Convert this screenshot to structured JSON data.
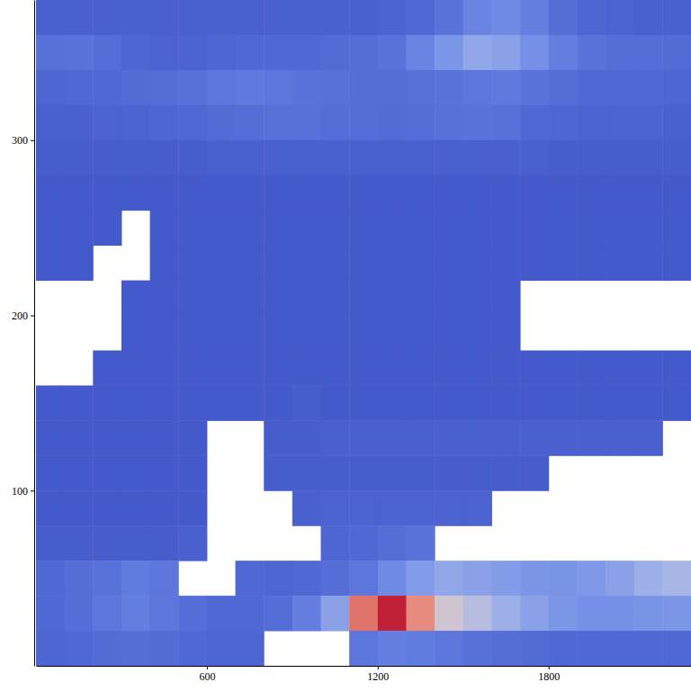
{
  "chart_data": {
    "type": "heatmap",
    "x": [
      50,
      150,
      250,
      350,
      450,
      550,
      650,
      750,
      850,
      950,
      1050,
      1150,
      1250,
      1350,
      1450,
      1550,
      1650,
      1750,
      1850,
      1950,
      2050,
      2150,
      2250
    ],
    "y": [
      370,
      350,
      330,
      310,
      290,
      270,
      250,
      230,
      210,
      190,
      170,
      150,
      130,
      110,
      90,
      70,
      50,
      30,
      10
    ],
    "xlim": [
      0,
      2300
    ],
    "ylim": [
      0,
      380
    ],
    "xticks": [
      600,
      1200,
      1800
    ],
    "yticks": [
      100,
      200,
      300
    ],
    "zlim": [
      0,
      1
    ],
    "values": [
      [
        0.07,
        0.07,
        0.07,
        0.07,
        0.07,
        0.07,
        0.07,
        0.07,
        0.07,
        0.07,
        0.07,
        0.07,
        0.08,
        0.1,
        0.14,
        0.2,
        0.22,
        0.18,
        0.12,
        0.09,
        0.08,
        0.07,
        0.07
      ],
      [
        0.13,
        0.14,
        0.12,
        0.09,
        0.08,
        0.08,
        0.09,
        0.1,
        0.1,
        0.1,
        0.11,
        0.12,
        0.14,
        0.2,
        0.26,
        0.32,
        0.3,
        0.24,
        0.18,
        0.14,
        0.12,
        0.12,
        0.11
      ],
      [
        0.09,
        0.1,
        0.1,
        0.11,
        0.12,
        0.13,
        0.15,
        0.16,
        0.15,
        0.14,
        0.13,
        0.12,
        0.12,
        0.13,
        0.14,
        0.15,
        0.16,
        0.14,
        0.12,
        0.1,
        0.1,
        0.1,
        0.09
      ],
      [
        0.07,
        0.07,
        0.08,
        0.08,
        0.09,
        0.1,
        0.11,
        0.12,
        0.13,
        0.13,
        0.12,
        0.12,
        0.11,
        0.12,
        0.13,
        0.14,
        0.13,
        0.1,
        0.09,
        0.08,
        0.08,
        0.08,
        0.07
      ],
      [
        0.06,
        0.06,
        0.06,
        0.06,
        0.06,
        0.06,
        0.07,
        0.07,
        0.07,
        0.07,
        0.07,
        0.07,
        0.07,
        0.07,
        0.07,
        0.07,
        0.07,
        0.07,
        0.06,
        0.06,
        0.06,
        0.06,
        0.06
      ],
      [
        0.05,
        0.05,
        0.05,
        0.05,
        0.05,
        0.05,
        0.05,
        0.05,
        0.05,
        0.05,
        0.05,
        0.05,
        0.05,
        0.05,
        0.05,
        0.05,
        0.05,
        0.05,
        0.05,
        0.05,
        0.05,
        0.05,
        0.05
      ],
      [
        0.05,
        0.05,
        0.05,
        null,
        0.05,
        0.05,
        0.05,
        0.05,
        0.05,
        0.05,
        0.05,
        0.05,
        0.05,
        0.05,
        0.05,
        0.05,
        0.05,
        0.05,
        0.05,
        0.05,
        0.05,
        0.05,
        0.05
      ],
      [
        0.05,
        0.05,
        null,
        null,
        0.05,
        0.05,
        0.05,
        0.05,
        0.05,
        0.05,
        0.05,
        0.05,
        0.05,
        0.05,
        0.05,
        0.05,
        0.05,
        0.05,
        0.05,
        0.05,
        0.05,
        0.05,
        0.05
      ],
      [
        null,
        null,
        null,
        0.05,
        0.05,
        0.05,
        0.05,
        0.05,
        0.05,
        0.05,
        0.05,
        0.05,
        0.05,
        0.05,
        0.05,
        0.05,
        0.05,
        null,
        null,
        null,
        null,
        null,
        null
      ],
      [
        null,
        null,
        null,
        0.05,
        0.05,
        0.05,
        0.05,
        0.05,
        0.05,
        0.05,
        0.05,
        0.05,
        0.05,
        0.05,
        0.05,
        0.05,
        0.05,
        null,
        null,
        null,
        null,
        null,
        null
      ],
      [
        null,
        null,
        0.05,
        0.05,
        0.05,
        0.05,
        0.05,
        0.05,
        0.05,
        0.05,
        0.05,
        0.05,
        0.05,
        0.05,
        0.05,
        0.05,
        0.05,
        0.05,
        0.05,
        0.05,
        0.05,
        0.05,
        0.05
      ],
      [
        0.05,
        0.05,
        0.05,
        0.05,
        0.05,
        0.05,
        0.05,
        0.05,
        0.05,
        0.06,
        0.05,
        0.05,
        0.05,
        0.05,
        0.05,
        0.05,
        0.05,
        0.05,
        0.05,
        0.05,
        0.05,
        0.05,
        0.05
      ],
      [
        0.05,
        0.05,
        0.05,
        0.05,
        0.05,
        0.05,
        null,
        null,
        0.06,
        0.06,
        0.07,
        0.07,
        0.07,
        0.07,
        0.07,
        0.07,
        0.07,
        0.07,
        0.07,
        0.07,
        0.07,
        0.07,
        null
      ],
      [
        0.05,
        0.05,
        0.05,
        0.05,
        0.05,
        0.05,
        null,
        null,
        0.06,
        0.06,
        0.06,
        0.06,
        0.06,
        0.06,
        0.06,
        0.06,
        0.06,
        0.06,
        null,
        null,
        null,
        null,
        null
      ],
      [
        0.05,
        0.05,
        0.05,
        0.05,
        0.05,
        0.05,
        null,
        null,
        null,
        0.07,
        0.08,
        0.08,
        0.08,
        0.08,
        0.08,
        0.08,
        null,
        null,
        null,
        null,
        null,
        null,
        null
      ],
      [
        0.06,
        0.06,
        0.06,
        0.06,
        0.06,
        0.07,
        null,
        null,
        null,
        null,
        0.09,
        0.1,
        0.12,
        0.14,
        null,
        null,
        null,
        null,
        null,
        null,
        null,
        null,
        null
      ],
      [
        0.1,
        0.12,
        0.14,
        0.17,
        0.15,
        null,
        null,
        0.1,
        0.09,
        0.1,
        0.12,
        0.15,
        0.22,
        0.28,
        0.32,
        0.3,
        0.28,
        0.26,
        0.25,
        0.27,
        0.3,
        0.35,
        0.38
      ],
      [
        0.1,
        0.12,
        0.15,
        0.18,
        0.15,
        0.12,
        0.1,
        0.1,
        0.12,
        0.18,
        0.3,
        0.8,
        0.95,
        0.75,
        0.5,
        0.42,
        0.35,
        0.3,
        0.26,
        0.24,
        0.24,
        0.25,
        0.26
      ],
      [
        0.09,
        0.1,
        0.11,
        0.12,
        0.11,
        0.1,
        0.09,
        0.09,
        null,
        null,
        null,
        0.15,
        0.18,
        0.17,
        0.15,
        0.13,
        0.12,
        0.11,
        0.1,
        0.1,
        0.1,
        0.1,
        0.1
      ]
    ]
  }
}
